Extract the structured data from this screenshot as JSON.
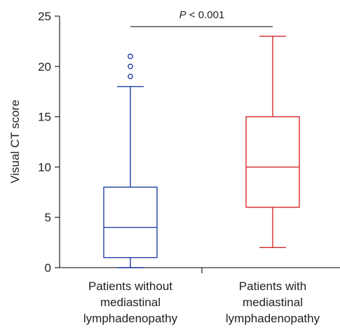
{
  "chart_data": {
    "type": "box",
    "ylabel": "Visual CT score",
    "ylim": [
      0,
      25
    ],
    "yticks": [
      0,
      5,
      10,
      15,
      20,
      25
    ],
    "categories": [
      [
        "Patients without",
        "mediastinal",
        "lymphadenopathy"
      ],
      [
        "Patients with",
        "mediastinal",
        "lymphadenopathy"
      ]
    ],
    "boxes": [
      {
        "whisker_low": 0,
        "q1": 1,
        "median": 4,
        "q3": 8,
        "whisker_high": 18,
        "outliers": [
          19,
          20,
          21
        ],
        "color": "#1f3fa8"
      },
      {
        "whisker_low": 2,
        "q1": 6,
        "median": 10,
        "q3": 15,
        "whisker_high": 23,
        "outliers": [],
        "color": "#d42a2a"
      }
    ],
    "annotation": {
      "p_symbol": "P",
      "text": " < 0.001"
    },
    "grid": false
  }
}
